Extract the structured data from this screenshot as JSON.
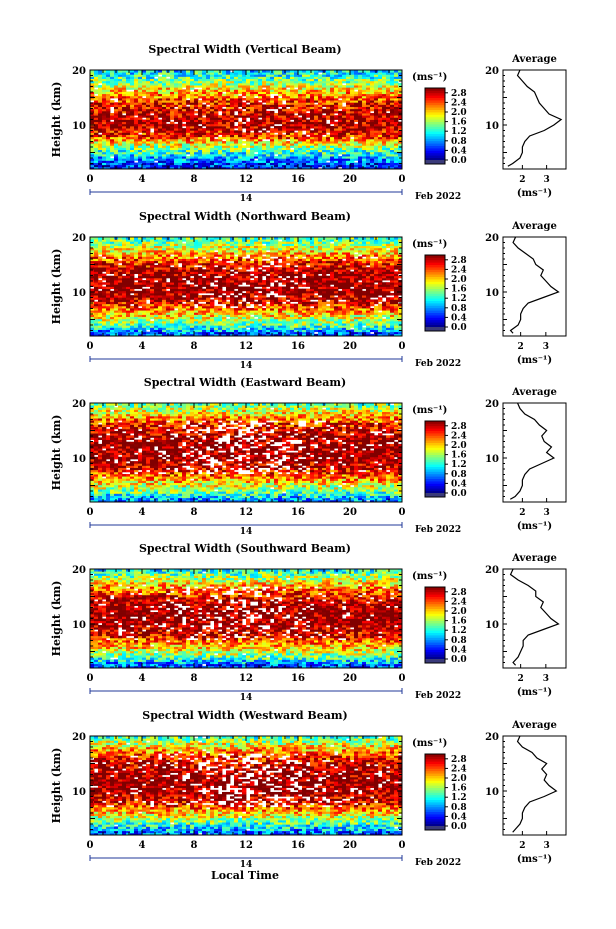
{
  "figure": {
    "xlabel": "Local Time",
    "date_label": "Feb 2022",
    "day_label": "14",
    "ylabel": "Height (km)",
    "colorbar_unit": "(ms⁻¹)",
    "avg_title": "Average",
    "avg_xlabel": "(ms⁻¹)"
  },
  "chart_data": [
    {
      "type": "heatmap",
      "title": "Spectral Width (Vertical Beam)",
      "x_ticks": [
        "0",
        "4",
        "8",
        "12",
        "16",
        "20",
        "0"
      ],
      "xlim": [
        0,
        24
      ],
      "y_ticks": [
        "20",
        "10"
      ],
      "ylim": [
        2,
        20
      ],
      "colorbar_ticks": [
        "2.8",
        "2.4",
        "2.0",
        "1.6",
        "1.2",
        "0.8",
        "0.4",
        "0.0"
      ],
      "colorbar_range": [
        0,
        3.0
      ],
      "missing": 0.05,
      "heights": [
        2.5,
        4,
        6,
        8,
        10,
        12,
        14,
        16,
        18,
        20
      ],
      "profile_by_height": [
        0.4,
        0.9,
        1.6,
        2.5,
        2.9,
        2.8,
        2.6,
        2.1,
        1.5,
        1.0
      ],
      "avg_profile": {
        "xticks": [
          "2",
          "3"
        ],
        "xlim": [
          1.2,
          3.8
        ],
        "height": [
          2.5,
          3,
          4,
          5,
          6,
          7,
          8,
          9,
          10,
          11,
          12,
          13,
          14,
          15,
          16,
          17,
          18,
          19,
          20
        ],
        "value": [
          1.4,
          1.6,
          1.9,
          2.0,
          2.0,
          2.1,
          2.3,
          2.9,
          3.3,
          3.6,
          3.1,
          2.9,
          2.7,
          2.6,
          2.5,
          2.2,
          2.0,
          1.8,
          1.9
        ]
      }
    },
    {
      "type": "heatmap",
      "title": "Spectral Width (Northward Beam)",
      "x_ticks": [
        "0",
        "4",
        "8",
        "12",
        "16",
        "20",
        "0"
      ],
      "xlim": [
        0,
        24
      ],
      "y_ticks": [
        "20",
        "10"
      ],
      "ylim": [
        2,
        20
      ],
      "colorbar_ticks": [
        "2.8",
        "2.4",
        "2.0",
        "1.6",
        "1.2",
        "0.8",
        "0.4",
        "0.0"
      ],
      "colorbar_range": [
        0,
        3.0
      ],
      "missing": 0.12,
      "heights": [
        2.5,
        4,
        6,
        8,
        10,
        12,
        14,
        16,
        18,
        20
      ],
      "profile_by_height": [
        0.6,
        1.4,
        2.0,
        2.7,
        3.0,
        3.0,
        2.9,
        2.4,
        1.8,
        1.3
      ],
      "avg_profile": {
        "xticks": [
          "2",
          "3"
        ],
        "xlim": [
          1.3,
          3.8
        ],
        "height": [
          2.5,
          3,
          4,
          5,
          6,
          7,
          8,
          9,
          10,
          11,
          12,
          13,
          14,
          15,
          16,
          17,
          18,
          19,
          20
        ],
        "value": [
          1.7,
          1.6,
          1.9,
          2.0,
          2.0,
          2.1,
          2.3,
          2.9,
          3.5,
          3.2,
          3.0,
          2.8,
          2.9,
          2.6,
          2.5,
          2.2,
          1.9,
          1.7,
          1.8
        ]
      }
    },
    {
      "type": "heatmap",
      "title": "Spectral Width (Eastward Beam)",
      "x_ticks": [
        "0",
        "4",
        "8",
        "12",
        "16",
        "20",
        "0"
      ],
      "xlim": [
        0,
        24
      ],
      "y_ticks": [
        "20",
        "10"
      ],
      "ylim": [
        2,
        20
      ],
      "colorbar_ticks": [
        "2.8",
        "2.4",
        "2.0",
        "1.6",
        "1.2",
        "0.8",
        "0.4",
        "0.0"
      ],
      "colorbar_range": [
        0,
        3.0
      ],
      "missing": 0.2,
      "heights": [
        2.5,
        4,
        6,
        8,
        10,
        12,
        14,
        16,
        18,
        20
      ],
      "profile_by_height": [
        0.8,
        1.5,
        2.1,
        2.7,
        3.0,
        3.0,
        2.9,
        2.6,
        2.0,
        1.4
      ],
      "avg_profile": {
        "xticks": [
          "2",
          "3"
        ],
        "xlim": [
          1.2,
          3.8
        ],
        "height": [
          2.5,
          3,
          4,
          5,
          6,
          7,
          8,
          9,
          10,
          11,
          12,
          13,
          14,
          15,
          16,
          17,
          18,
          19,
          20
        ],
        "value": [
          1.5,
          1.7,
          1.9,
          2.0,
          2.0,
          2.1,
          2.3,
          2.8,
          3.3,
          3.0,
          3.2,
          2.9,
          2.8,
          3.0,
          2.7,
          2.5,
          2.1,
          1.9,
          1.8
        ]
      }
    },
    {
      "type": "heatmap",
      "title": "Spectral Width (Southward Beam)",
      "x_ticks": [
        "0",
        "4",
        "8",
        "12",
        "16",
        "20",
        "0"
      ],
      "xlim": [
        0,
        24
      ],
      "y_ticks": [
        "20",
        "10"
      ],
      "ylim": [
        2,
        20
      ],
      "colorbar_ticks": [
        "2.8",
        "2.4",
        "2.0",
        "1.6",
        "1.2",
        "0.8",
        "0.4",
        "0.0"
      ],
      "colorbar_range": [
        0,
        3.0
      ],
      "missing": 0.15,
      "heights": [
        2.5,
        4,
        6,
        8,
        10,
        12,
        14,
        16,
        18,
        20
      ],
      "profile_by_height": [
        0.6,
        1.4,
        2.1,
        2.7,
        3.0,
        3.0,
        2.9,
        2.4,
        1.8,
        1.1
      ],
      "avg_profile": {
        "xticks": [
          "2",
          "3"
        ],
        "xlim": [
          1.3,
          3.8
        ],
        "height": [
          2.5,
          3,
          4,
          5,
          6,
          7,
          8,
          9,
          10,
          11,
          12,
          13,
          14,
          15,
          16,
          17,
          18,
          19,
          20
        ],
        "value": [
          1.8,
          1.7,
          1.9,
          2.0,
          2.1,
          2.1,
          2.3,
          2.9,
          3.5,
          3.2,
          3.0,
          2.8,
          2.9,
          2.6,
          2.6,
          2.3,
          1.9,
          1.6,
          1.7
        ]
      }
    },
    {
      "type": "heatmap",
      "title": "Spectral Width (Westward Beam)",
      "x_ticks": [
        "0",
        "4",
        "8",
        "12",
        "16",
        "20",
        "0"
      ],
      "xlim": [
        0,
        24
      ],
      "y_ticks": [
        "20",
        "10"
      ],
      "ylim": [
        2,
        20
      ],
      "colorbar_ticks": [
        "2.8",
        "2.4",
        "2.0",
        "1.6",
        "1.2",
        "0.8",
        "0.4",
        "0.0"
      ],
      "colorbar_range": [
        0,
        3.0
      ],
      "missing": 0.2,
      "heights": [
        2.5,
        4,
        6,
        8,
        10,
        12,
        14,
        16,
        18,
        20
      ],
      "profile_by_height": [
        0.7,
        1.3,
        2.0,
        2.7,
        3.0,
        3.0,
        2.9,
        2.6,
        2.0,
        1.3
      ],
      "avg_profile": {
        "xticks": [
          "2",
          "3"
        ],
        "xlim": [
          1.2,
          3.8
        ],
        "height": [
          2.5,
          3,
          4,
          5,
          6,
          7,
          8,
          9,
          10,
          11,
          12,
          13,
          14,
          15,
          16,
          17,
          18,
          19,
          20
        ],
        "value": [
          1.6,
          1.7,
          1.9,
          2.0,
          2.0,
          2.1,
          2.3,
          2.9,
          3.4,
          3.1,
          2.9,
          3.0,
          2.8,
          3.0,
          2.6,
          2.4,
          2.0,
          1.8,
          1.9
        ]
      }
    }
  ]
}
